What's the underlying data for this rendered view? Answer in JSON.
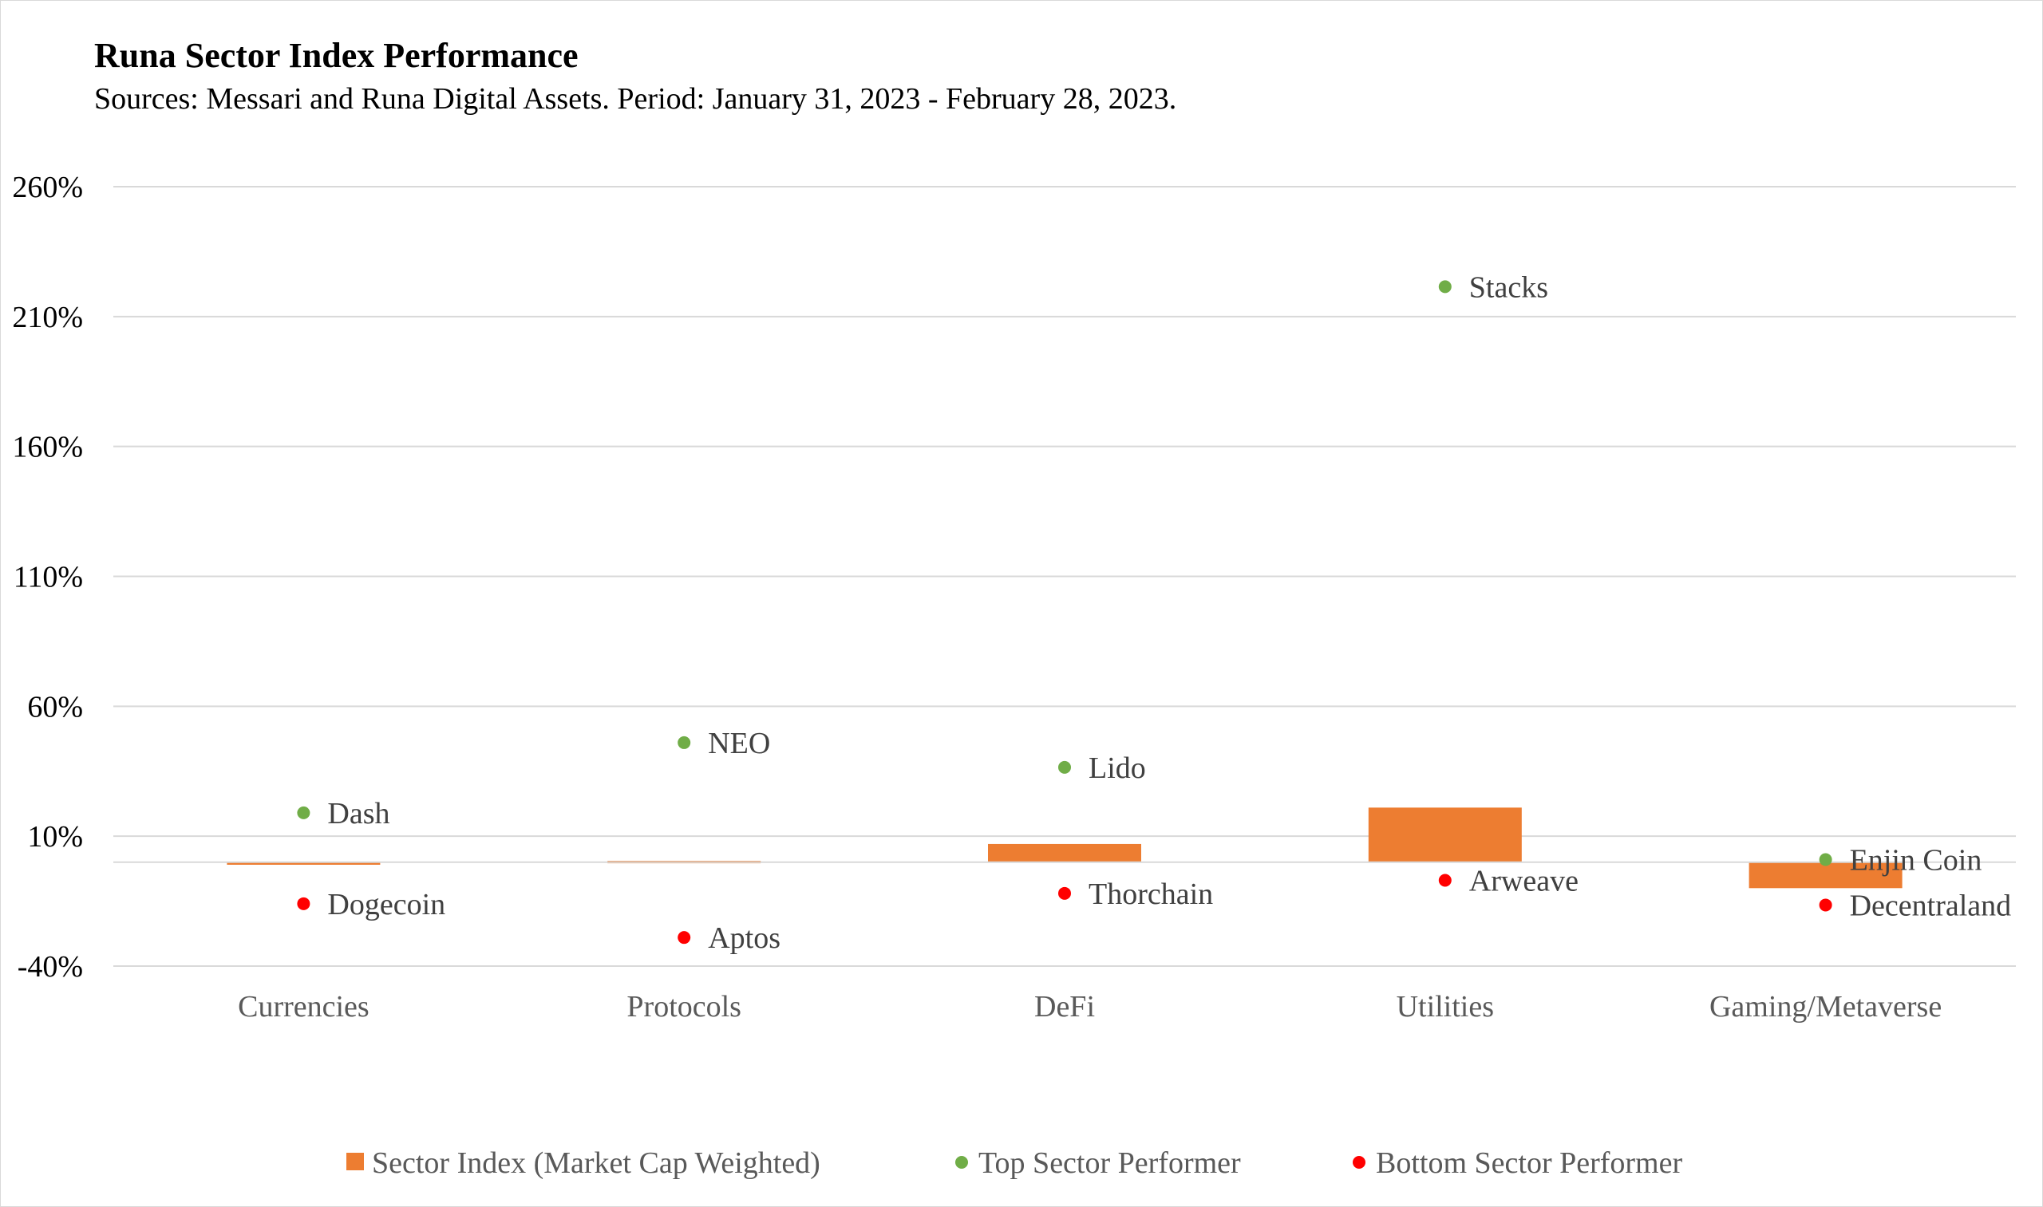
{
  "chart_data": {
    "type": "bar",
    "title": "Runa Sector Index Performance",
    "subtitle": "Sources: Messari and Runa Digital Assets. Period: January 31, 2023 - February 28, 2023.",
    "categories": [
      "Currencies",
      "Protocols",
      "DeFi",
      "Utilities",
      "Gaming/Metaverse"
    ],
    "y_ticks": [
      -40,
      10,
      60,
      110,
      160,
      210,
      260
    ],
    "y_tick_labels": [
      "-40%",
      "10%",
      "60%",
      "110%",
      "160%",
      "210%",
      "260%"
    ],
    "ylim": [
      -40,
      260
    ],
    "grid": true,
    "legend_position": "bottom",
    "series": [
      {
        "name": "Sector Index (Market Cap Weighted)",
        "kind": "bar",
        "color": "#ed7d31",
        "values": [
          -1,
          0.5,
          7,
          21,
          -10
        ]
      },
      {
        "name": "Top Sector Performer",
        "kind": "point",
        "color": "#70ad47",
        "values": [
          19,
          46,
          36.5,
          221.5,
          1
        ],
        "labels": [
          "Dash",
          "NEO",
          "Lido",
          "Stacks",
          "Enjin Coin"
        ]
      },
      {
        "name": "Bottom Sector Performer",
        "kind": "point",
        "color": "#ff0000",
        "values": [
          -16,
          -29,
          -12,
          -7,
          -16.5
        ],
        "labels": [
          "Dogecoin",
          "Aptos",
          "Thorchain",
          "Arweave",
          "Decentraland"
        ]
      }
    ]
  }
}
